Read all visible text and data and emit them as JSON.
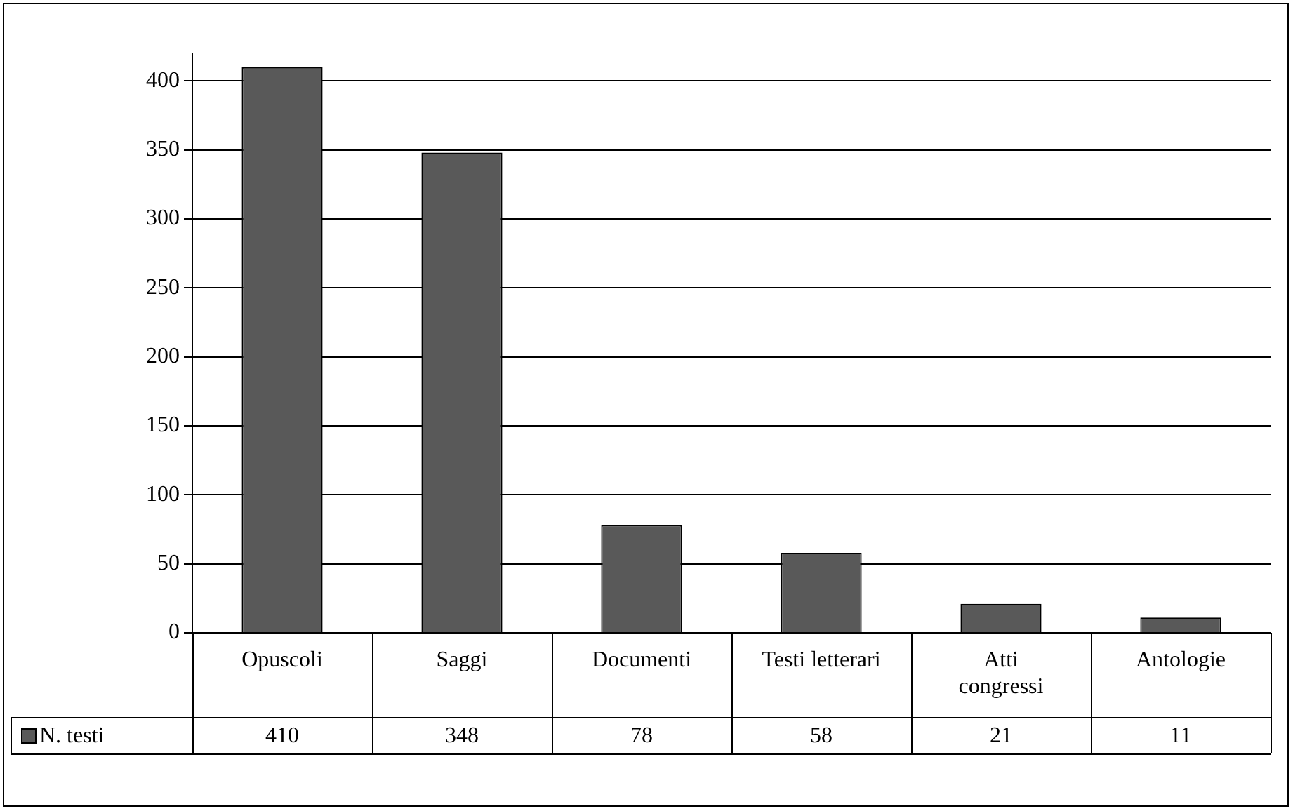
{
  "chart_data": {
    "type": "bar",
    "categories": [
      "Opuscoli",
      "Saggi",
      "Documenti",
      "Testi letterari",
      "Atti congressi",
      "Antologie"
    ],
    "series": [
      {
        "name": "N. testi",
        "color": "#595959",
        "values": [
          410,
          348,
          78,
          58,
          21,
          11
        ]
      }
    ],
    "ylim": [
      0,
      420
    ],
    "yticks": [
      0,
      50,
      100,
      150,
      200,
      250,
      300,
      350,
      400
    ],
    "grid": "y",
    "legend": "bottom left",
    "data_labels": true
  }
}
